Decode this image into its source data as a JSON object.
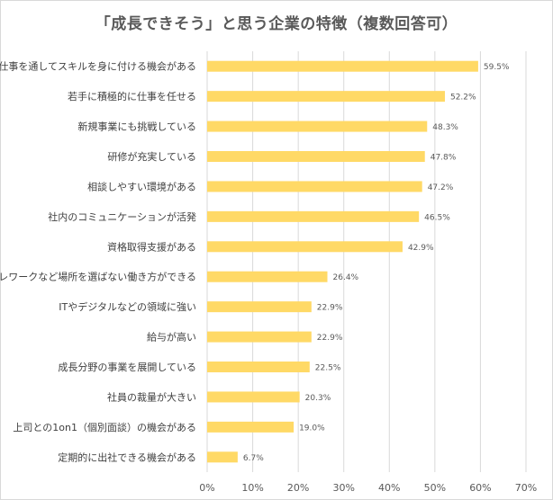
{
  "chart_data": {
    "type": "bar",
    "orientation": "horizontal",
    "title": "「成長できそう」と思う企業の特徴（複数回答可）",
    "categories": [
      "仕事を通してスキルを身に付ける機会がある",
      "若手に積極的に仕事を任せる",
      "新規事業にも挑戦している",
      "研修が充実している",
      "相談しやすい環境がある",
      "社内のコミュニケーションが活発",
      "資格取得支援がある",
      "テレワークなど場所を選ばない働き方ができる",
      "ITやデジタルなどの領域に強い",
      "給与が高い",
      "成長分野の事業を展開している",
      "社員の裁量が大きい",
      "上司との1on1（個別面談）の機会がある",
      "定期的に出社できる機会がある"
    ],
    "values": [
      59.5,
      52.2,
      48.3,
      47.8,
      47.2,
      46.5,
      42.9,
      26.4,
      22.9,
      22.9,
      22.5,
      20.3,
      19.0,
      6.7
    ],
    "value_labels": [
      "59.5%",
      "52.2%",
      "48.3%",
      "47.8%",
      "47.2%",
      "46.5%",
      "42.9%",
      "26.4%",
      "22.9%",
      "22.9%",
      "22.5%",
      "20.3%",
      "19.0%",
      "6.7%"
    ],
    "xlim": [
      0,
      70
    ],
    "x_ticks": [
      "0%",
      "10%",
      "20%",
      "30%",
      "40%",
      "50%",
      "60%",
      "70%"
    ],
    "grid": true,
    "bar_color": "#FFD966",
    "grid_color": "#D9D9D9"
  }
}
